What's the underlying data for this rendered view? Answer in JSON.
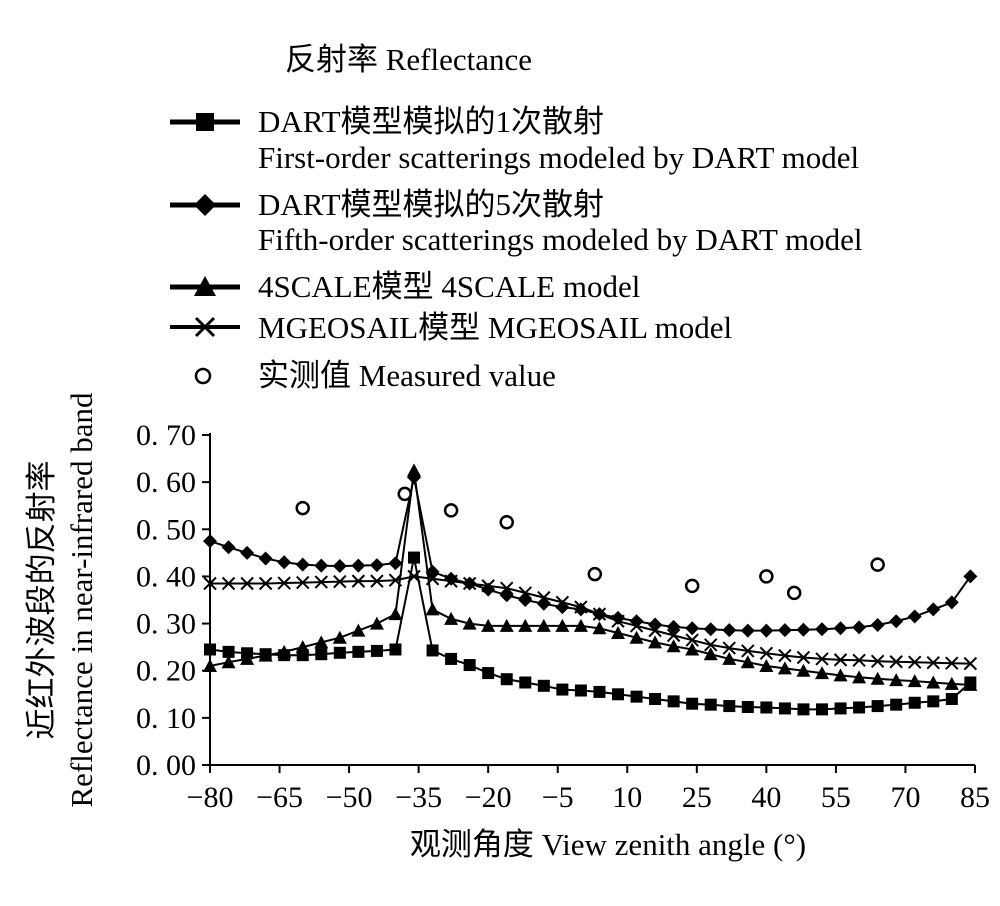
{
  "chart_data": {
    "type": "line",
    "legend_title": "反射率 Reflectance",
    "xlabel": "观测角度 View zenith angle (°)",
    "ylabel_line1": "近红外波段的反射率",
    "ylabel_line2": "Reflectance in near-infrared band",
    "xlim": [
      -80,
      85
    ],
    "ylim": [
      0,
      0.7
    ],
    "xticks": [
      "−80",
      "−65",
      "−50",
      "−35",
      "−20",
      "−5",
      "10",
      "25",
      "40",
      "55",
      "70",
      "85"
    ],
    "xtick_values": [
      -80,
      -65,
      -50,
      -35,
      -20,
      -5,
      10,
      25,
      40,
      55,
      70,
      85
    ],
    "yticks": [
      "0. 00",
      "0. 10",
      "0. 20",
      "0. 30",
      "0. 40",
      "0. 50",
      "0. 60",
      "0. 70"
    ],
    "ytick_values": [
      0,
      0.1,
      0.2,
      0.3,
      0.4,
      0.5,
      0.6,
      0.7
    ],
    "legend_position": "top",
    "series": [
      {
        "name_line1": "DART模型模拟的1次散射",
        "name_line2": "First-order scatterings modeled by DART model",
        "marker": "square",
        "x": [
          -80,
          -76,
          -72,
          -68,
          -64,
          -60,
          -56,
          -52,
          -48,
          -44,
          -40,
          -36,
          -32,
          -28,
          -24,
          -20,
          -16,
          -12,
          -8,
          -4,
          0,
          4,
          8,
          12,
          16,
          20,
          24,
          28,
          32,
          36,
          40,
          44,
          48,
          52,
          56,
          60,
          64,
          68,
          72,
          76,
          80,
          84
        ],
        "y": [
          0.245,
          0.24,
          0.237,
          0.235,
          0.233,
          0.233,
          0.235,
          0.238,
          0.24,
          0.242,
          0.245,
          0.44,
          0.243,
          0.225,
          0.212,
          0.195,
          0.182,
          0.175,
          0.168,
          0.16,
          0.158,
          0.155,
          0.15,
          0.145,
          0.14,
          0.135,
          0.13,
          0.128,
          0.125,
          0.123,
          0.122,
          0.12,
          0.118,
          0.118,
          0.12,
          0.122,
          0.125,
          0.128,
          0.132,
          0.135,
          0.14,
          0.175
        ]
      },
      {
        "name_line1": "DART模型模拟的5次散射",
        "name_line2": "Fifth-order scatterings modeled by DART model",
        "marker": "diamond",
        "x": [
          -80,
          -76,
          -72,
          -68,
          -64,
          -60,
          -56,
          -52,
          -48,
          -44,
          -40,
          -36,
          -32,
          -28,
          -24,
          -20,
          -16,
          -12,
          -8,
          -4,
          0,
          4,
          8,
          12,
          16,
          20,
          24,
          28,
          32,
          36,
          40,
          44,
          48,
          52,
          56,
          60,
          64,
          68,
          72,
          76,
          80,
          84
        ],
        "y": [
          0.475,
          0.462,
          0.45,
          0.438,
          0.43,
          0.425,
          0.423,
          0.422,
          0.423,
          0.424,
          0.428,
          0.61,
          0.41,
          0.395,
          0.385,
          0.372,
          0.36,
          0.35,
          0.342,
          0.335,
          0.33,
          0.32,
          0.312,
          0.305,
          0.298,
          0.293,
          0.29,
          0.288,
          0.286,
          0.285,
          0.285,
          0.286,
          0.287,
          0.288,
          0.29,
          0.292,
          0.297,
          0.305,
          0.315,
          0.33,
          0.345,
          0.4
        ]
      },
      {
        "name": "4SCALE模型 4SCALE model",
        "marker": "triangle",
        "x": [
          -80,
          -76,
          -72,
          -68,
          -64,
          -60,
          -56,
          -52,
          -48,
          -44,
          -40,
          -36,
          -32,
          -28,
          -24,
          -20,
          -16,
          -12,
          -8,
          -4,
          0,
          4,
          8,
          12,
          16,
          20,
          24,
          28,
          32,
          36,
          40,
          44,
          48,
          52,
          56,
          60,
          64,
          68,
          72,
          76,
          80,
          84
        ],
        "y": [
          0.21,
          0.218,
          0.225,
          0.232,
          0.24,
          0.25,
          0.26,
          0.27,
          0.285,
          0.3,
          0.32,
          0.625,
          0.33,
          0.31,
          0.3,
          0.295,
          0.295,
          0.295,
          0.295,
          0.295,
          0.295,
          0.29,
          0.28,
          0.27,
          0.26,
          0.252,
          0.245,
          0.235,
          0.225,
          0.218,
          0.21,
          0.205,
          0.2,
          0.195,
          0.19,
          0.186,
          0.183,
          0.18,
          0.178,
          0.175,
          0.172,
          0.17
        ]
      },
      {
        "name": "MGEOSAIL模型 MGEOSAIL model",
        "marker": "cross",
        "x": [
          -80,
          -76,
          -72,
          -68,
          -64,
          -60,
          -56,
          -52,
          -48,
          -44,
          -40,
          -36,
          -32,
          -28,
          -24,
          -20,
          -16,
          -12,
          -8,
          -4,
          0,
          4,
          8,
          12,
          16,
          20,
          24,
          28,
          32,
          36,
          40,
          44,
          48,
          52,
          56,
          60,
          64,
          68,
          72,
          76,
          80,
          84
        ],
        "y": [
          0.385,
          0.385,
          0.385,
          0.385,
          0.386,
          0.387,
          0.388,
          0.389,
          0.39,
          0.39,
          0.392,
          0.4,
          0.395,
          0.39,
          0.385,
          0.38,
          0.375,
          0.365,
          0.355,
          0.345,
          0.335,
          0.32,
          0.305,
          0.295,
          0.285,
          0.275,
          0.265,
          0.255,
          0.248,
          0.242,
          0.237,
          0.232,
          0.228,
          0.225,
          0.223,
          0.222,
          0.22,
          0.219,
          0.218,
          0.217,
          0.216,
          0.215
        ]
      },
      {
        "name": "实测值 Measured value",
        "marker": "circle",
        "x": [
          -60,
          -38,
          -28,
          -16,
          3,
          24,
          40,
          46,
          64
        ],
        "y": [
          0.545,
          0.575,
          0.54,
          0.515,
          0.405,
          0.38,
          0.4,
          0.365,
          0.425
        ]
      }
    ]
  }
}
